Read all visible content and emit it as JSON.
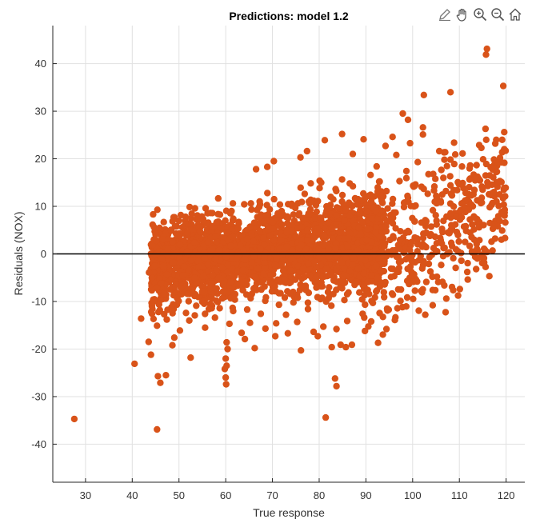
{
  "toolbar": {
    "icons": [
      "edit-icon",
      "pan-hand-icon",
      "zoom-in-icon",
      "zoom-out-icon",
      "home-icon"
    ]
  },
  "chart_data": {
    "type": "scatter",
    "title": "Predictions: model 1.2",
    "xlabel": "True response",
    "ylabel": "Residuals (NOX)",
    "xlim": [
      23,
      124
    ],
    "ylim": [
      -48,
      48
    ],
    "xticks": [
      30,
      40,
      50,
      60,
      70,
      80,
      90,
      100,
      110,
      120
    ],
    "yticks": [
      -40,
      -30,
      -20,
      -10,
      0,
      10,
      20,
      30,
      40
    ],
    "grid": true,
    "legend": "none",
    "reference_line_y": 0,
    "marker_color": "#D95319",
    "reference_line_color": "#000000",
    "series": [
      {
        "points": [
          [
            27.6,
            -34.7
          ],
          [
            45.3,
            -36.9
          ],
          [
            81.4,
            -34.4
          ],
          [
            83.4,
            -26.2
          ],
          [
            83.7,
            -27.8
          ],
          [
            40.5,
            -23.1
          ],
          [
            45.5,
            -25.7
          ],
          [
            46.0,
            -27.1
          ],
          [
            47.2,
            -25.5
          ],
          [
            60.0,
            -26.0
          ],
          [
            60.1,
            -27.4
          ],
          [
            60.0,
            -22.0
          ],
          [
            59.8,
            -24.2
          ],
          [
            60.2,
            -23.5
          ],
          [
            52.5,
            -21.8
          ],
          [
            41.9,
            -13.6
          ],
          [
            43.5,
            -18.5
          ],
          [
            44.0,
            -21.2
          ],
          [
            48.6,
            -19.2
          ],
          [
            60.2,
            -18.6
          ],
          [
            60.4,
            -20.0
          ],
          [
            66.2,
            -19.8
          ],
          [
            76.1,
            -20.3
          ],
          [
            82.7,
            -19.6
          ],
          [
            84.6,
            -19.1
          ],
          [
            85.7,
            -19.6
          ],
          [
            87.0,
            -19.1
          ],
          [
            92.6,
            -18.7
          ],
          [
            89.8,
            -16.2
          ],
          [
            94.4,
            -15.8
          ],
          [
            45.3,
            -15.1
          ],
          [
            49.0,
            -17.6
          ],
          [
            64.1,
            -17.9
          ],
          [
            70.6,
            -17.3
          ],
          [
            73.3,
            -16.7
          ],
          [
            96.2,
            -13.9
          ],
          [
            97.8,
            -11.2
          ],
          [
            102.7,
            -12.8
          ],
          [
            104.3,
            -10.8
          ],
          [
            107.2,
            -9.4
          ],
          [
            110.1,
            -7.4
          ],
          [
            111.8,
            -5.4
          ],
          [
            113.6,
            -3.2
          ],
          [
            115.3,
            -1.8
          ],
          [
            117.1,
            0.7
          ],
          [
            119.0,
            3.0
          ],
          [
            118.2,
            5.8
          ],
          [
            119.4,
            8.6
          ],
          [
            119.7,
            9.3
          ],
          [
            118.6,
            12.5
          ],
          [
            119.5,
            13.5
          ],
          [
            119.0,
            15.1
          ],
          [
            118.3,
            19.2
          ],
          [
            119.5,
            21.7
          ],
          [
            118.7,
            20.2
          ],
          [
            115.6,
            26.3
          ],
          [
            119.6,
            25.6
          ],
          [
            119.4,
            35.3
          ],
          [
            115.7,
            41.9
          ],
          [
            115.9,
            43.1
          ],
          [
            108.1,
            34.0
          ],
          [
            102.4,
            33.4
          ],
          [
            97.9,
            29.5
          ],
          [
            99.0,
            28.2
          ],
          [
            102.2,
            26.6
          ],
          [
            102.2,
            25.1
          ],
          [
            105.7,
            21.6
          ],
          [
            94.2,
            22.7
          ],
          [
            95.7,
            24.6
          ],
          [
            89.5,
            24.1
          ],
          [
            84.9,
            25.2
          ],
          [
            81.2,
            23.9
          ],
          [
            77.4,
            21.6
          ],
          [
            70.3,
            19.5
          ],
          [
            68.9,
            18.3
          ],
          [
            66.5,
            17.8
          ],
          [
            76.0,
            20.3
          ],
          [
            87.2,
            21.0
          ],
          [
            92.3,
            18.4
          ],
          [
            96.5,
            20.8
          ],
          [
            101.1,
            19.3
          ],
          [
            106.8,
            19.8
          ],
          [
            108.9,
            18.9
          ],
          [
            112.3,
            18.6
          ],
          [
            114.7,
            22.3
          ],
          [
            116.5,
            16.5
          ],
          [
            112.6,
            12.3
          ],
          [
            110.5,
            10.6
          ],
          [
            108.1,
            14.4
          ],
          [
            104.4,
            16.8
          ],
          [
            100.6,
            14.6
          ],
          [
            99.0,
            11.8
          ],
          [
            97.2,
            15.3
          ],
          [
            94.4,
            13.2
          ],
          [
            91.0,
            16.6
          ],
          [
            88.3,
            11.5
          ],
          [
            91.3,
            7.4
          ],
          [
            95.8,
            7.6
          ],
          [
            99.0,
            4.8
          ],
          [
            102.7,
            7.1
          ],
          [
            106.4,
            4.6
          ],
          [
            109.9,
            2.6
          ],
          [
            112.7,
            0.5
          ],
          [
            114.3,
            2.9
          ],
          [
            115.9,
            0.4
          ],
          [
            111.7,
            -3.8
          ],
          [
            108.7,
            -0.9
          ],
          [
            105.2,
            -4.8
          ],
          [
            104.3,
            -7.6
          ],
          [
            100.3,
            -4.3
          ],
          [
            97.5,
            -7.5
          ],
          [
            93.9,
            -9.1
          ],
          [
            91.5,
            -10.3
          ],
          [
            89.3,
            -12.6
          ],
          [
            86.0,
            -14.1
          ],
          [
            83.7,
            -15.8
          ],
          [
            80.9,
            -15.3
          ],
          [
            79.7,
            -17.3
          ],
          [
            78.8,
            -16.4
          ],
          [
            75.3,
            -14.3
          ],
          [
            72.9,
            -12.8
          ],
          [
            70.8,
            -14.6
          ],
          [
            68.5,
            -15.7
          ],
          [
            65.2,
            -14.5
          ],
          [
            63.4,
            -16.6
          ],
          [
            60.8,
            -14.7
          ],
          [
            57.7,
            -13.4
          ],
          [
            55.6,
            -15.5
          ],
          [
            52.2,
            -14.0
          ],
          [
            50.2,
            -16.1
          ],
          [
            47.4,
            -13.8
          ],
          [
            45.9,
            -11.8
          ],
          [
            44.6,
            -10.0
          ],
          [
            45.3,
            -7.2
          ],
          [
            44.2,
            -5.0
          ],
          [
            43.6,
            -3.9
          ],
          [
            44.8,
            -2.5
          ],
          [
            46.4,
            -1.0
          ],
          [
            47.4,
            -4.3
          ],
          [
            46.8,
            -8.5
          ],
          [
            48.4,
            -11.2
          ],
          [
            49.6,
            -9.3
          ],
          [
            51.5,
            -12.4
          ],
          [
            53.7,
            -10.9
          ],
          [
            56.4,
            -11.6
          ],
          [
            58.3,
            -10.1
          ],
          [
            61.6,
            -12.0
          ],
          [
            64.6,
            -11.7
          ],
          [
            67.5,
            -12.6
          ],
          [
            71.4,
            -10.7
          ],
          [
            74.5,
            -10.2
          ],
          [
            77.6,
            -11.6
          ],
          [
            80.3,
            -9.5
          ],
          [
            82.6,
            -10.9
          ],
          [
            85.4,
            -9.7
          ],
          [
            88.6,
            -8.1
          ],
          [
            90.4,
            -5.9
          ],
          [
            93.0,
            -6.9
          ],
          [
            95.4,
            -3.1
          ],
          [
            97.1,
            -1.7
          ],
          [
            99.4,
            0.8
          ],
          [
            101.9,
            1.9
          ],
          [
            104.1,
            -0.2
          ],
          [
            106.0,
            2.9
          ],
          [
            108.2,
            5.1
          ],
          [
            110.5,
            7.7
          ],
          [
            112.0,
            9.3
          ],
          [
            113.8,
            7.3
          ],
          [
            114.8,
            10.8
          ],
          [
            116.5,
            9.8
          ],
          [
            117.5,
            6.1
          ],
          [
            117.4,
            13.0
          ],
          [
            116.7,
            18.2
          ],
          [
            117.9,
            17.2
          ]
        ]
      }
    ]
  }
}
